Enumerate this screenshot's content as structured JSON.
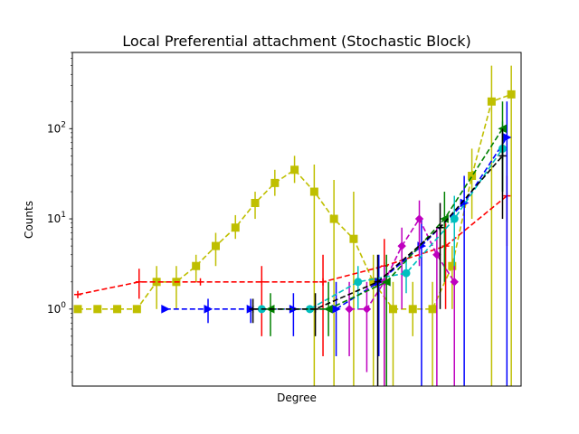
{
  "chart_data": {
    "type": "line",
    "title": "Local Preferential attachment (Stochastic Block)",
    "xlabel": "Degree",
    "ylabel": "Counts",
    "xscale": "log",
    "yscale": "log",
    "ylim": [
      0.14,
      700
    ],
    "grid": false,
    "legend": "none",
    "yticks": [
      {
        "value": 1,
        "label": "10^0"
      },
      {
        "value": 10,
        "label": "10^1"
      },
      {
        "value": 100,
        "label": "10^2"
      }
    ],
    "error_bar_style": "vertical",
    "series": [
      {
        "color": "#bfbf00",
        "marker": "square",
        "linestyle": "dashed",
        "points": [
          {
            "y": 1,
            "err": [
              1,
              1
            ]
          },
          {
            "y": 1,
            "err": [
              1,
              1
            ]
          },
          {
            "y": 1,
            "err": [
              1,
              1
            ]
          },
          {
            "y": 1,
            "err": [
              1,
              1
            ]
          },
          {
            "y": 2,
            "err": [
              1,
              3
            ]
          },
          {
            "y": 2,
            "err": [
              1,
              3
            ]
          },
          {
            "y": 3,
            "err": [
              2,
              4
            ]
          },
          {
            "y": 5,
            "err": [
              3,
              7
            ]
          },
          {
            "y": 8,
            "err": [
              6,
              11
            ]
          },
          {
            "y": 15,
            "err": [
              10,
              20
            ]
          },
          {
            "y": 25,
            "err": [
              18,
              35
            ]
          },
          {
            "y": 35,
            "err": [
              25,
              50
            ]
          },
          {
            "y": 20,
            "err": [
              0.14,
              40
            ]
          },
          {
            "y": 10,
            "err": [
              0.14,
              27
            ]
          },
          {
            "y": 6,
            "err": [
              0.14,
              20
            ]
          },
          {
            "y": 2,
            "err": [
              0.14,
              4
            ]
          },
          {
            "y": 1,
            "err": [
              0.14,
              2
            ]
          },
          {
            "y": 1,
            "err": [
              0.5,
              2
            ]
          },
          {
            "y": 1,
            "err": [
              0.14,
              2
            ]
          },
          {
            "y": 3,
            "err": [
              1,
              5
            ]
          },
          {
            "y": 30,
            "err": [
              10,
              60
            ]
          },
          {
            "y": 200,
            "err": [
              0.14,
              500
            ]
          },
          {
            "y": 240,
            "err": [
              0.14,
              500
            ]
          }
        ]
      },
      {
        "color": "#ff0000",
        "marker": "plus",
        "linestyle": "dashed",
        "points": [
          {
            "y": 1.45
          },
          {
            "y": 2,
            "err": [
              1.3,
              2.8
            ]
          },
          {
            "y": 2
          },
          {
            "y": 2,
            "err": [
              0.5,
              3
            ]
          },
          {
            "y": 2,
            "err": [
              0.3,
              4
            ]
          },
          {
            "y": 3,
            "err": [
              0.14,
              6
            ]
          },
          {
            "y": 5,
            "err": [
              1,
              9
            ]
          },
          {
            "y": 18,
            "err": [
              5,
              30
            ]
          }
        ]
      },
      {
        "color": "#0000ff",
        "marker": "triangle-right",
        "linestyle": "dashed",
        "points": [
          {
            "y": 1
          },
          {
            "y": 1,
            "err": [
              0.7,
              1.3
            ]
          },
          {
            "y": 1,
            "err": [
              0.7,
              1.3
            ]
          },
          {
            "y": 1,
            "err": [
              0.5,
              1.5
            ]
          },
          {
            "y": 1,
            "err": [
              0.3,
              2
            ]
          },
          {
            "y": 2,
            "err": [
              0.3,
              4
            ]
          },
          {
            "y": 5,
            "err": [
              0.14,
              10
            ]
          },
          {
            "y": 15,
            "err": [
              0.14,
              30
            ]
          },
          {
            "y": 80,
            "err": [
              0.14,
              200
            ]
          }
        ]
      },
      {
        "color": "#bf00bf",
        "marker": "diamond",
        "linestyle": "dashed",
        "points": [
          {
            "y": 1,
            "err": [
              0.3,
              2
            ]
          },
          {
            "y": 1,
            "err": [
              0.2,
              2
            ]
          },
          {
            "y": 2,
            "err": [
              0.14,
              3
            ]
          },
          {
            "y": 5,
            "err": [
              1,
              8
            ]
          },
          {
            "y": 10,
            "err": [
              3,
              16
            ]
          },
          {
            "y": 4,
            "err": [
              0.14,
              8
            ]
          },
          {
            "y": 2,
            "err": [
              0.14,
              4
            ]
          }
        ]
      },
      {
        "color": "#00bfbf",
        "marker": "circle",
        "linestyle": "dashed",
        "points": [
          {
            "y": 1
          },
          {
            "y": 1
          },
          {
            "y": 2,
            "err": [
              1,
              3
            ]
          },
          {
            "y": 2.5,
            "err": [
              1.5,
              3.5
            ]
          },
          {
            "y": 10,
            "err": [
              3,
              18
            ]
          },
          {
            "y": 60,
            "err": [
              20,
              120
            ]
          }
        ]
      },
      {
        "color": "#008000",
        "marker": "triangle-left",
        "linestyle": "dashed",
        "points": [
          {
            "y": 1,
            "err": [
              0.5,
              1.5
            ]
          },
          {
            "y": 1,
            "err": [
              0.5,
              2
            ]
          },
          {
            "y": 2,
            "err": [
              0.14,
              4
            ]
          },
          {
            "y": 10,
            "err": [
              2,
              20
            ]
          },
          {
            "y": 100,
            "err": [
              20,
              200
            ]
          }
        ]
      },
      {
        "color": "#000000",
        "marker": "plus",
        "linestyle": "dashed",
        "points": [
          {
            "y": 1,
            "err": [
              0.7,
              1.3
            ]
          },
          {
            "y": 1,
            "err": [
              0.5,
              1.5
            ]
          },
          {
            "y": 2,
            "err": [
              0.14,
              4
            ]
          },
          {
            "y": 8,
            "err": [
              1,
              15
            ]
          },
          {
            "y": 50,
            "err": [
              10,
              100
            ]
          }
        ]
      }
    ]
  }
}
